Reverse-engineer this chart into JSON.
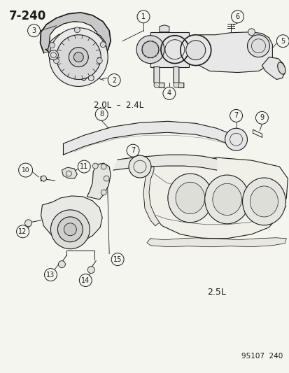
{
  "title": "7-240",
  "subtitle_top": "2.0L  –  2.4L",
  "subtitle_bottom": "2.5L",
  "ref_number": "95107  240",
  "bg_color": "#f5f5f0",
  "line_color": "#1a1a1a",
  "figsize": [
    4.14,
    5.33
  ],
  "dpi": 100
}
